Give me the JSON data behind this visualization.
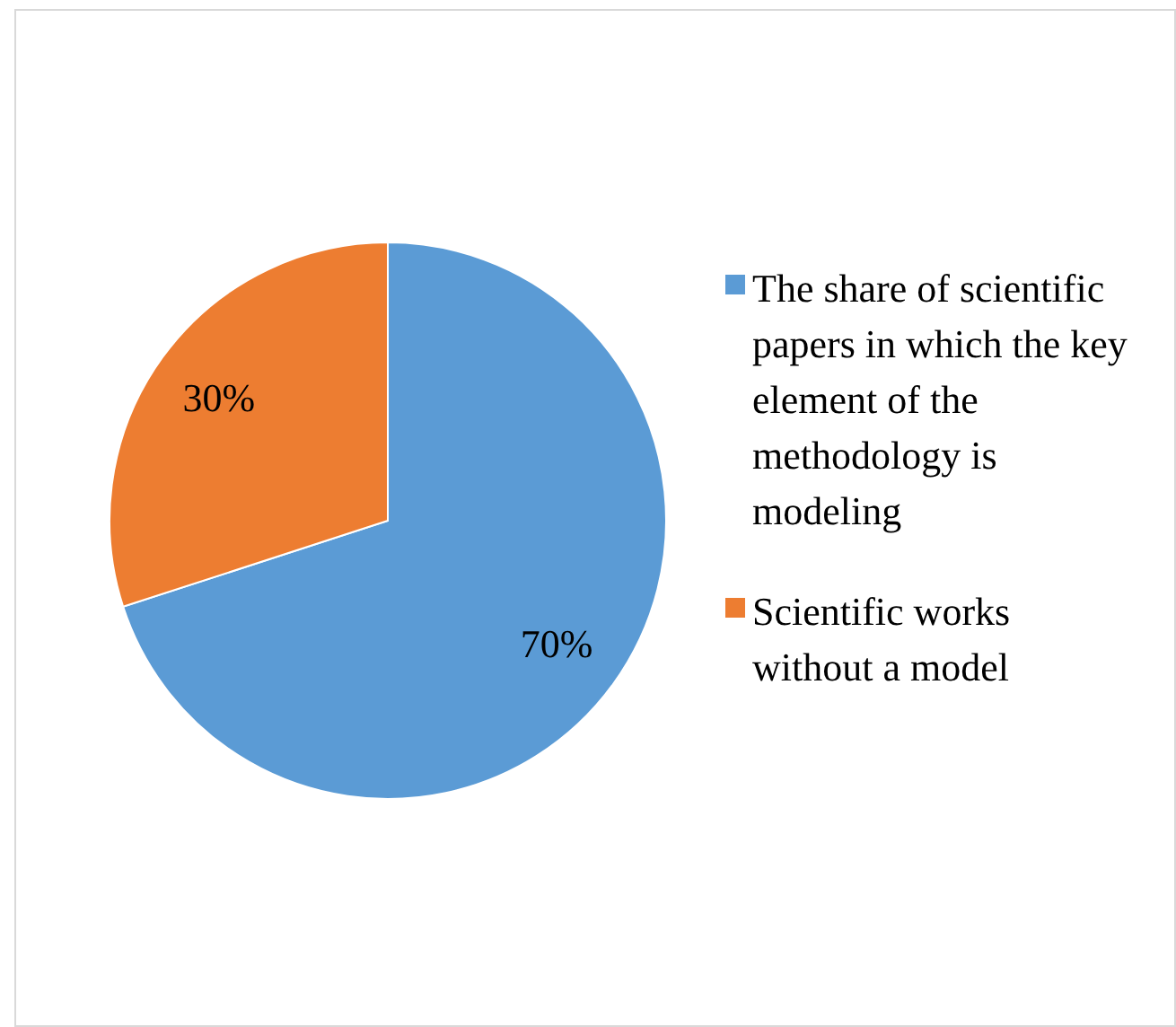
{
  "chart_data": {
    "type": "pie",
    "categories": [
      "The share of scientific papers in which the key element of the methodology is modeling",
      "Scientific works without a model"
    ],
    "values": [
      70,
      30
    ],
    "colors": [
      "#5b9bd5",
      "#ed7d31"
    ],
    "value_labels": [
      "70%",
      "30%"
    ],
    "legend": "right"
  }
}
